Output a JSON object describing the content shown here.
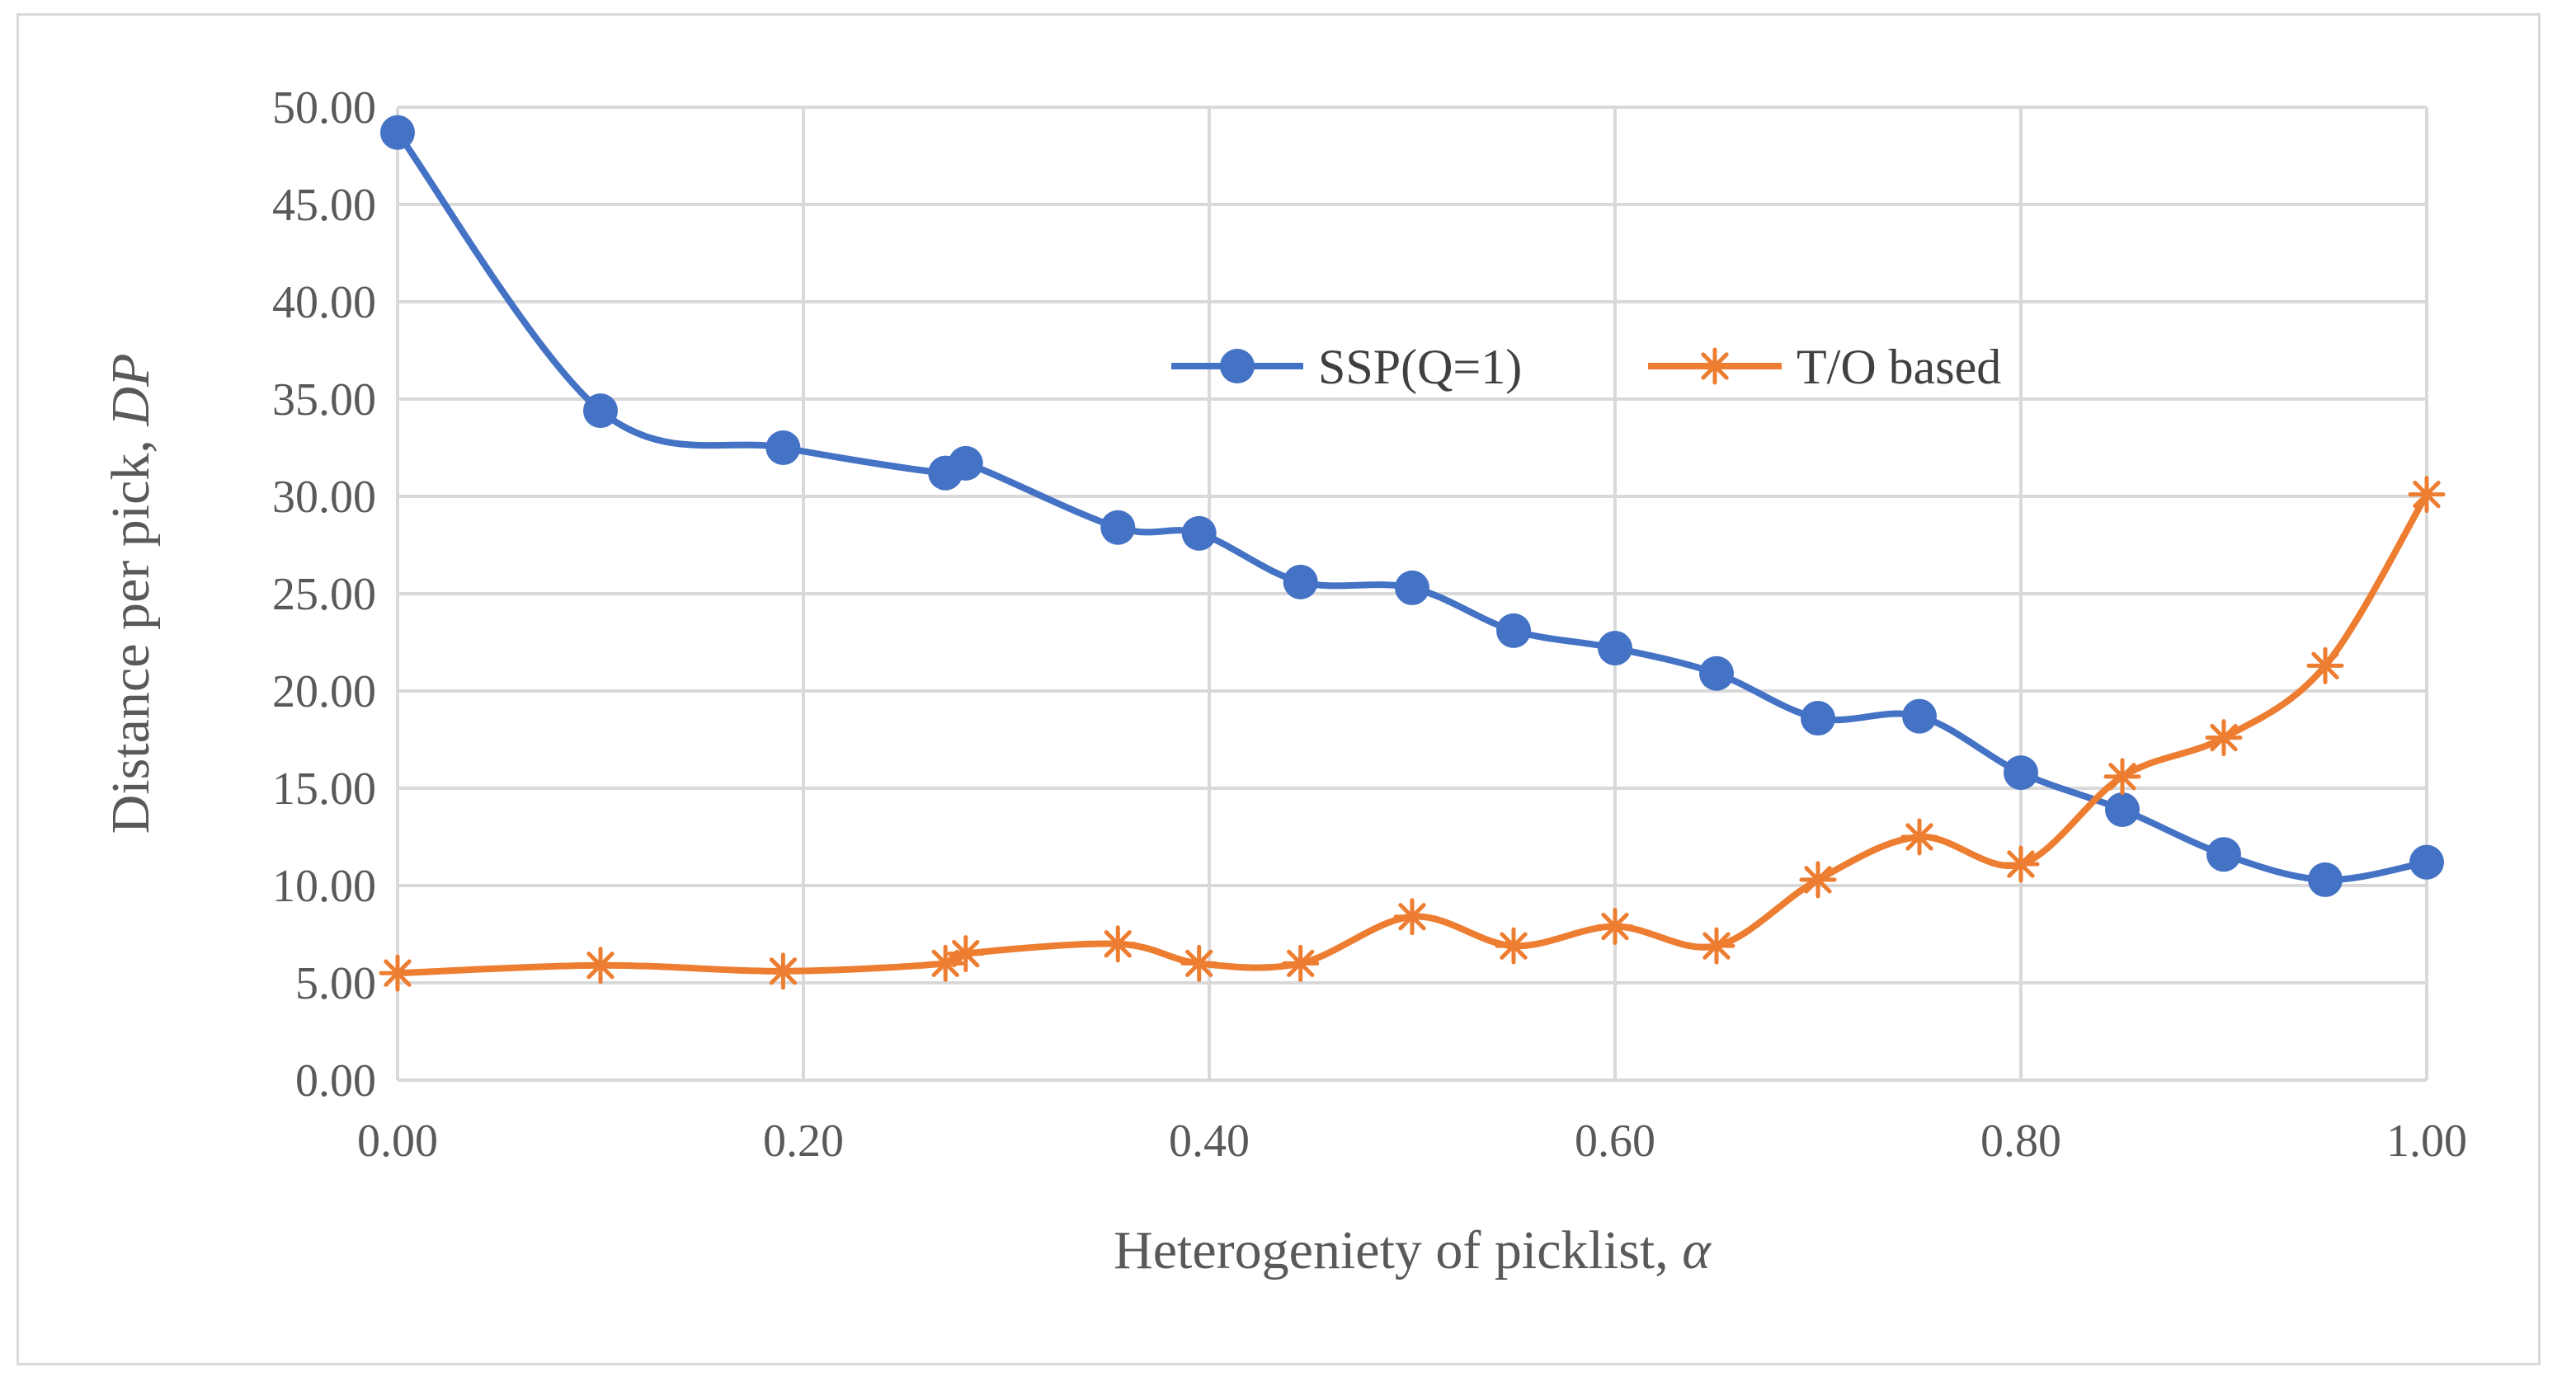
{
  "chart_data": {
    "type": "line",
    "title": "",
    "xlabel": "Heterogeniety of picklist, ",
    "xlabel_symbol": "α",
    "ylabel": "Distance per pick, ",
    "ylabel_symbol": "DP",
    "xlim": [
      0,
      1
    ],
    "ylim": [
      0,
      50
    ],
    "x_ticks": [
      "0.00",
      "0.20",
      "0.40",
      "0.60",
      "0.80",
      "1.00"
    ],
    "y_ticks": [
      "0.00",
      "5.00",
      "10.00",
      "15.00",
      "20.00",
      "25.00",
      "30.00",
      "35.00",
      "40.00",
      "45.00",
      "50.00"
    ],
    "grid": true,
    "legend_position": "upper-center",
    "series": [
      {
        "name": "SSP(Q=1)",
        "color": "#4472c4",
        "marker": "circle",
        "x": [
          0.0,
          0.1,
          0.19,
          0.27,
          0.28,
          0.355,
          0.395,
          0.445,
          0.5,
          0.55,
          0.6,
          0.65,
          0.7,
          0.75,
          0.8,
          0.85,
          0.9,
          0.95,
          1.0
        ],
        "y": [
          48.7,
          34.4,
          32.5,
          31.2,
          31.7,
          28.4,
          28.1,
          25.6,
          25.3,
          23.1,
          22.2,
          20.9,
          18.6,
          18.7,
          15.8,
          13.9,
          11.6,
          10.3,
          11.2
        ]
      },
      {
        "name": "T/O based",
        "color": "#ed7d31",
        "marker": "asterisk",
        "x": [
          0.0,
          0.1,
          0.19,
          0.27,
          0.28,
          0.355,
          0.395,
          0.445,
          0.5,
          0.55,
          0.6,
          0.65,
          0.7,
          0.75,
          0.8,
          0.85,
          0.9,
          0.95,
          1.0
        ],
        "y": [
          5.5,
          5.9,
          5.6,
          6.0,
          6.5,
          7.0,
          6.0,
          6.0,
          8.4,
          6.9,
          7.9,
          6.9,
          10.3,
          12.5,
          11.1,
          15.6,
          17.6,
          21.3,
          30.1
        ]
      }
    ]
  }
}
